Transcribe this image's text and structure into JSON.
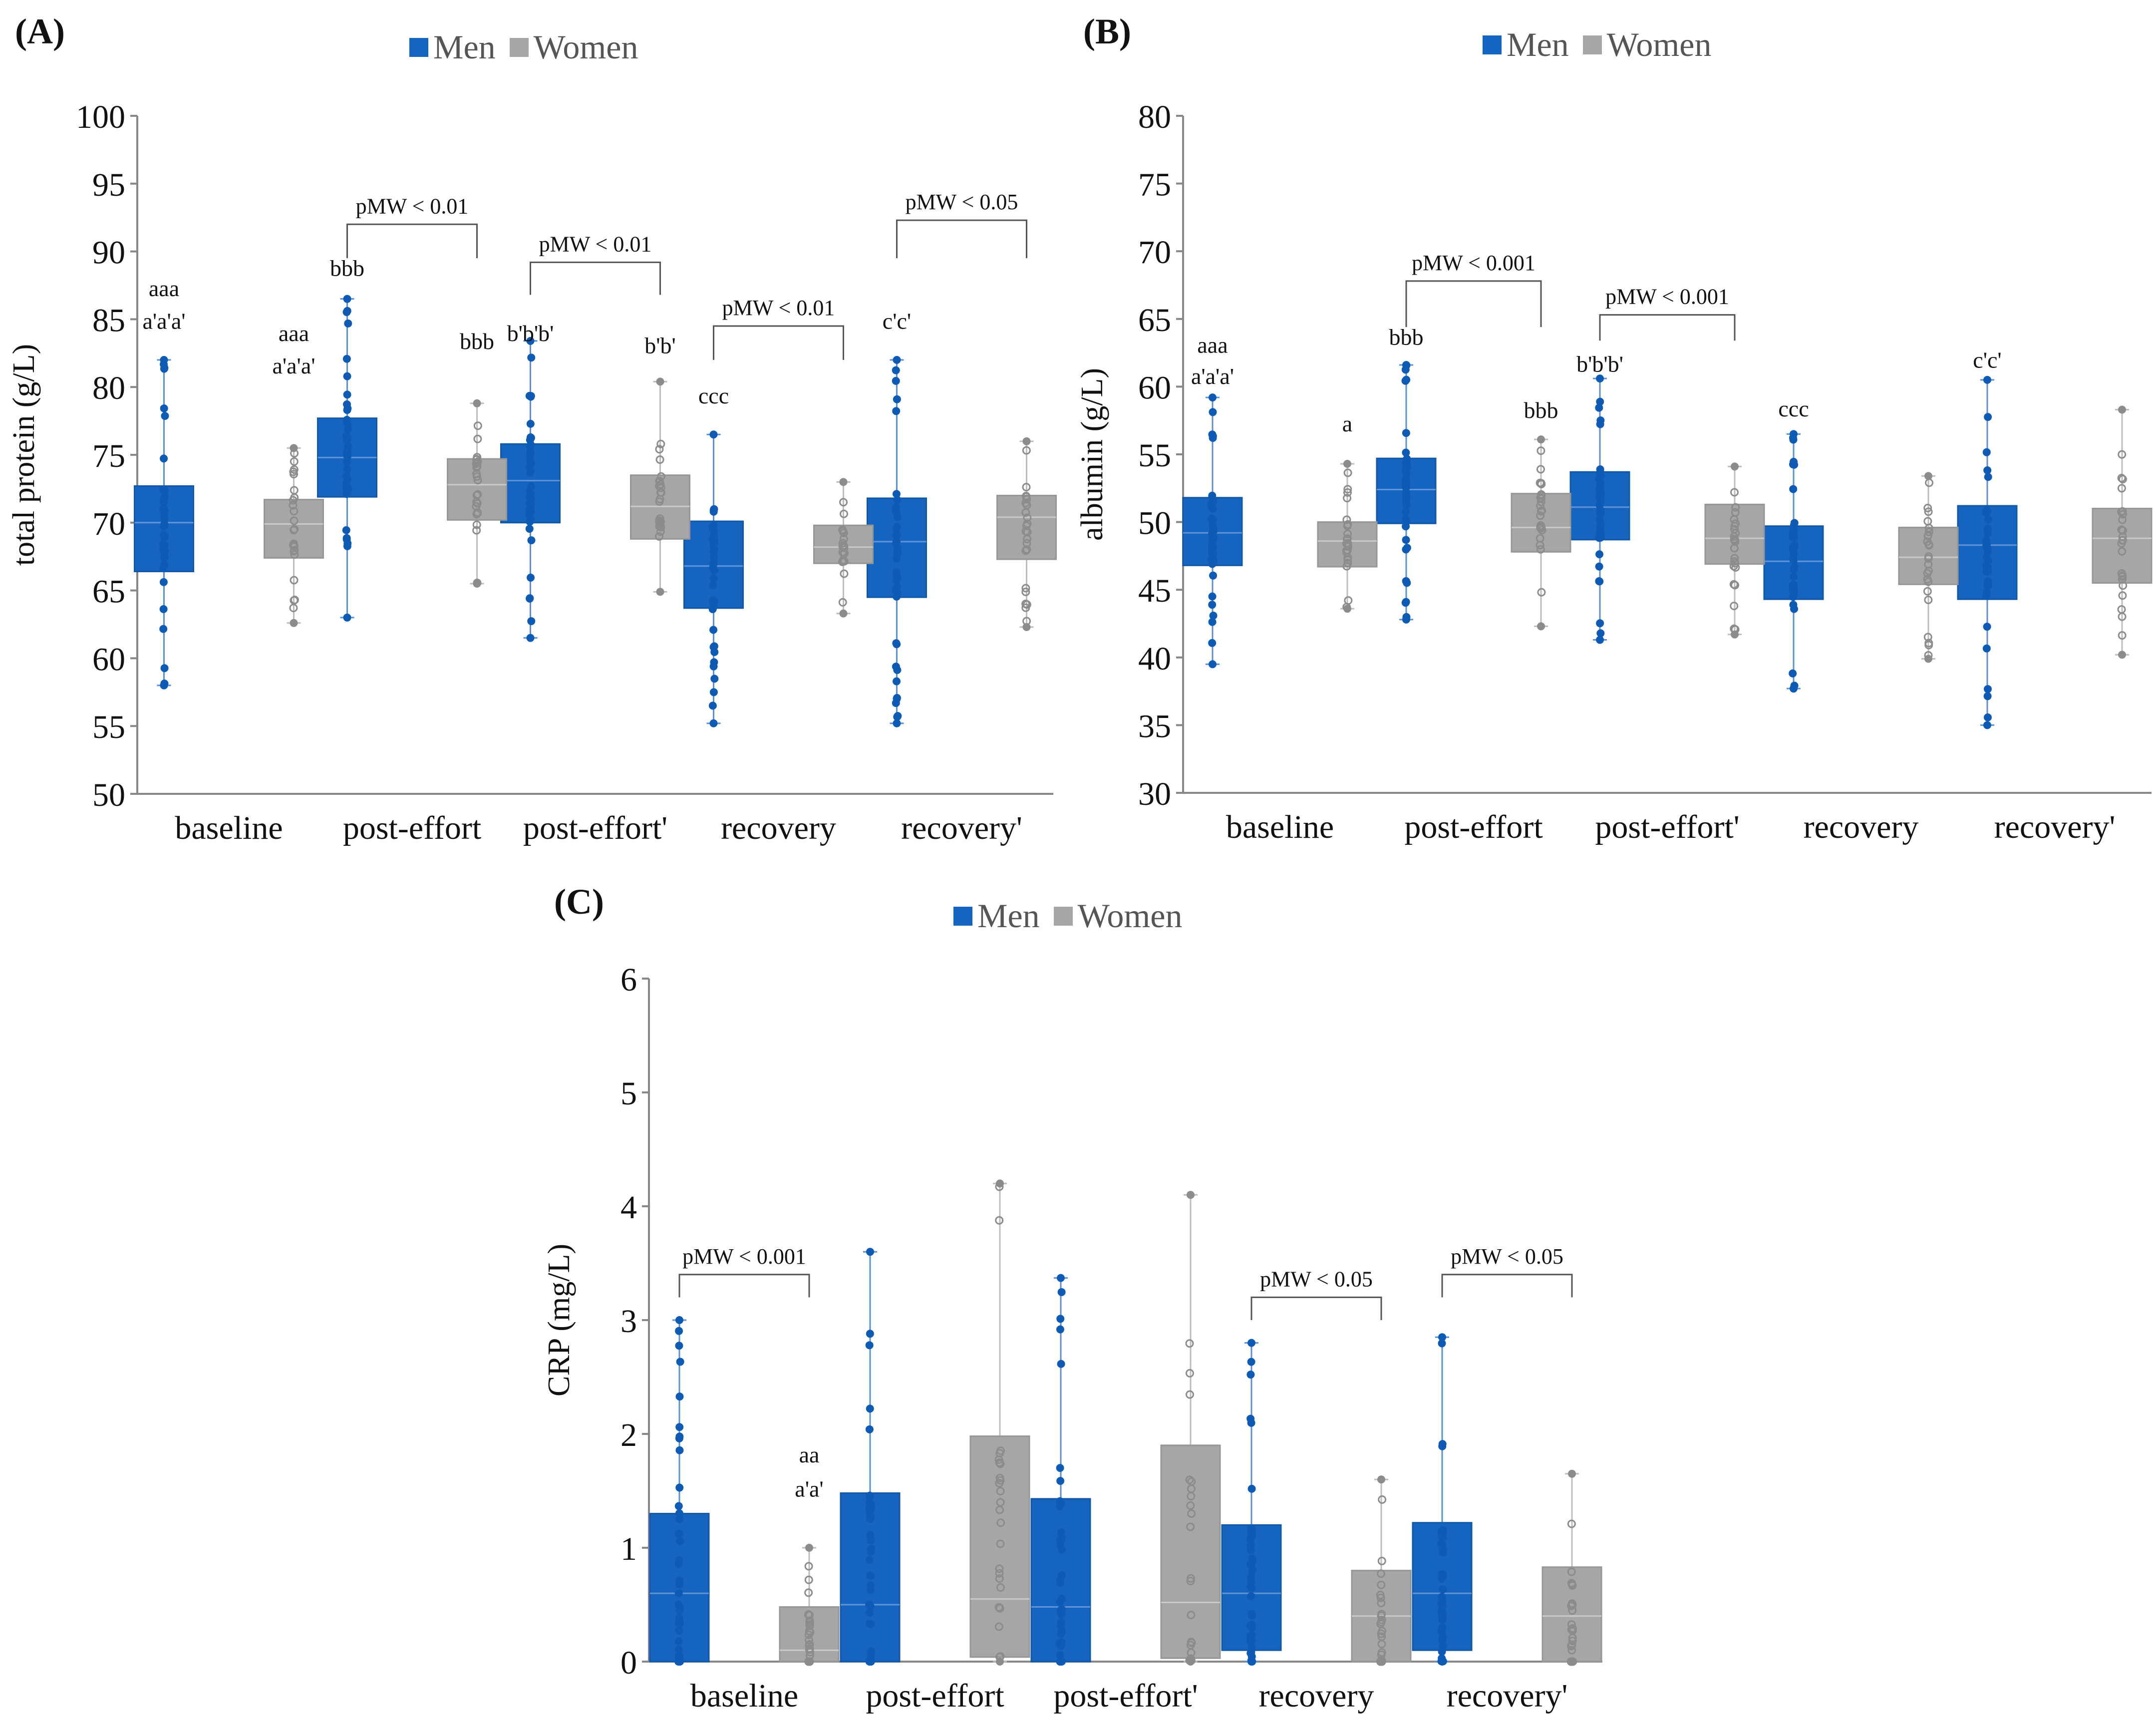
{
  "colors": {
    "men": "#1565C0",
    "women": "#A6A6A6",
    "axis": "#888888",
    "text": "#111111"
  },
  "chart_data": [
    {
      "panel": "(A)",
      "type": "box",
      "legend": [
        "Men",
        "Women"
      ],
      "ylabel": "total protein (g/L)",
      "ylim": [
        50,
        100
      ],
      "yticks": [
        50,
        55,
        60,
        65,
        70,
        75,
        80,
        85,
        90,
        95,
        100
      ],
      "categories": [
        "baseline",
        "post-effort",
        "post-effort'",
        "recovery",
        "recovery'"
      ],
      "series": [
        {
          "name": "Men",
          "boxes": [
            {
              "min": 58,
              "q1": 66.4,
              "median": 70,
              "q3": 72.7,
              "max": 82
            },
            {
              "min": 63,
              "q1": 71.9,
              "median": 74.8,
              "q3": 77.7,
              "max": 86.5
            },
            {
              "min": 61.5,
              "q1": 70,
              "median": 73.1,
              "q3": 75.8,
              "max": 83.4
            },
            {
              "min": 55.2,
              "q1": 63.7,
              "median": 66.8,
              "q3": 70.1,
              "max": 76.5
            },
            {
              "min": 55.2,
              "q1": 64.5,
              "median": 68.6,
              "q3": 71.8,
              "max": 82
            }
          ]
        },
        {
          "name": "Women",
          "boxes": [
            {
              "min": 62.6,
              "q1": 67.4,
              "median": 69.9,
              "q3": 71.7,
              "max": 75.5
            },
            {
              "min": 65.5,
              "q1": 70.2,
              "median": 72.8,
              "q3": 74.7,
              "max": 78.8
            },
            {
              "min": 64.9,
              "q1": 68.8,
              "median": 71.2,
              "q3": 73.5,
              "max": 80.4
            },
            {
              "min": 63.3,
              "q1": 67,
              "median": 68.2,
              "q3": 69.8,
              "max": 73
            },
            {
              "min": 62.3,
              "q1": 67.3,
              "median": 70.4,
              "q3": 72,
              "max": 76
            }
          ]
        }
      ],
      "annotations": [
        {
          "text": "aaa",
          "cat": 0,
          "side": "men",
          "y": 86.7
        },
        {
          "text": "a'a'a'",
          "cat": 0,
          "side": "men",
          "y": 84.3
        },
        {
          "text": "aaa",
          "cat": 0,
          "side": "women",
          "y": 83.4
        },
        {
          "text": "a'a'a'",
          "cat": 0,
          "side": "women",
          "y": 81
        },
        {
          "text": "bbb",
          "cat": 1,
          "side": "men",
          "y": 88.2
        },
        {
          "text": "bbb",
          "cat": 1,
          "side": "women",
          "y": 82.8
        },
        {
          "text": "b'b'b'",
          "cat": 2,
          "side": "men",
          "y": 83.4
        },
        {
          "text": "b'b'",
          "cat": 2,
          "side": "women",
          "y": 82.5
        },
        {
          "text": "ccc",
          "cat": 3,
          "side": "men",
          "y": 78.8
        },
        {
          "text": "c'c'",
          "cat": 4,
          "side": "men",
          "y": 84.3
        }
      ],
      "brackets": [
        {
          "cat": 1,
          "text": "pMW < 0.01",
          "y": 92,
          "drop": 89.5
        },
        {
          "cat": 2,
          "text": "pMW < 0.01",
          "y": 89.2,
          "drop": 86.8
        },
        {
          "cat": 3,
          "text": "pMW < 0.01",
          "y": 84.5,
          "drop": 82
        },
        {
          "cat": 4,
          "text": "pMW < 0.05",
          "y": 92.3,
          "drop": 89.5
        }
      ]
    },
    {
      "panel": "(B)",
      "type": "box",
      "legend": [
        "Men",
        "Women"
      ],
      "ylabel": "albumin (g/L)",
      "ylim": [
        30,
        80
      ],
      "yticks": [
        30,
        35,
        40,
        45,
        50,
        55,
        60,
        65,
        70,
        75,
        80
      ],
      "categories": [
        "baseline",
        "post-effort",
        "post-effort'",
        "recovery",
        "recovery'"
      ],
      "series": [
        {
          "name": "Men",
          "boxes": [
            {
              "min": 39.5,
              "q1": 46.8,
              "median": 49.2,
              "q3": 51.8,
              "max": 59.2
            },
            {
              "min": 42.8,
              "q1": 49.9,
              "median": 52.4,
              "q3": 54.7,
              "max": 61.6
            },
            {
              "min": 41.3,
              "q1": 48.7,
              "median": 51.1,
              "q3": 53.7,
              "max": 60.6
            },
            {
              "min": 37.7,
              "q1": 44.3,
              "median": 47.1,
              "q3": 49.7,
              "max": 56.5
            },
            {
              "min": 35,
              "q1": 44.3,
              "median": 48.3,
              "q3": 51.2,
              "max": 60.5
            }
          ]
        },
        {
          "name": "Women",
          "boxes": [
            {
              "min": 43.6,
              "q1": 46.7,
              "median": 48.6,
              "q3": 50,
              "max": 54.3
            },
            {
              "min": 42.3,
              "q1": 47.8,
              "median": 49.6,
              "q3": 52.1,
              "max": 56.1
            },
            {
              "min": 41.7,
              "q1": 46.9,
              "median": 48.8,
              "q3": 51.3,
              "max": 54.1
            },
            {
              "min": 39.9,
              "q1": 45.4,
              "median": 47.4,
              "q3": 49.6,
              "max": 53.4
            },
            {
              "min": 40.2,
              "q1": 45.5,
              "median": 48.8,
              "q3": 51,
              "max": 58.3
            }
          ]
        }
      ],
      "annotations": [
        {
          "text": "aaa",
          "cat": 0,
          "side": "men",
          "y": 62.5
        },
        {
          "text": "a'a'a'",
          "cat": 0,
          "side": "men",
          "y": 60.2
        },
        {
          "text": "a",
          "cat": 0,
          "side": "women",
          "y": 56.7
        },
        {
          "text": "bbb",
          "cat": 1,
          "side": "men",
          "y": 63.1
        },
        {
          "text": "bbb",
          "cat": 1,
          "side": "women",
          "y": 57.7
        },
        {
          "text": "b'b'b'",
          "cat": 2,
          "side": "men",
          "y": 61.1
        },
        {
          "text": "ccc",
          "cat": 3,
          "side": "men",
          "y": 57.8
        },
        {
          "text": "c'c'",
          "cat": 4,
          "side": "men",
          "y": 61.4
        }
      ],
      "brackets": [
        {
          "cat": 1,
          "text": "pMW < 0.001",
          "y": 67.8,
          "drop": 64.4
        },
        {
          "cat": 2,
          "text": "pMW < 0.001",
          "y": 65.3,
          "drop": 63.4
        }
      ]
    },
    {
      "panel": "(C)",
      "type": "box",
      "legend": [
        "Men",
        "Women"
      ],
      "ylabel": "CRP (mg/L)",
      "ylim": [
        0,
        6
      ],
      "yticks": [
        0,
        1,
        2,
        3,
        4,
        5,
        6
      ],
      "categories": [
        "baseline",
        "post-effort",
        "post-effort'",
        "recovery",
        "recovery'"
      ],
      "series": [
        {
          "name": "Men",
          "boxes": [
            {
              "min": 0,
              "q1": 0,
              "median": 0.6,
              "q3": 1.3,
              "max": 3
            },
            {
              "min": 0,
              "q1": 0,
              "median": 0.5,
              "q3": 1.48,
              "max": 3.6
            },
            {
              "min": 0,
              "q1": 0,
              "median": 0.48,
              "q3": 1.43,
              "max": 3.37
            },
            {
              "min": 0,
              "q1": 0.1,
              "median": 0.6,
              "q3": 1.2,
              "max": 2.8
            },
            {
              "min": 0,
              "q1": 0.1,
              "median": 0.6,
              "q3": 1.22,
              "max": 2.85
            }
          ]
        },
        {
          "name": "Women",
          "boxes": [
            {
              "min": 0,
              "q1": 0,
              "median": 0.1,
              "q3": 0.48,
              "max": 1
            },
            {
              "min": 0,
              "q1": 0.04,
              "median": 0.55,
              "q3": 1.98,
              "max": 4.2
            },
            {
              "min": 0,
              "q1": 0.03,
              "median": 0.52,
              "q3": 1.9,
              "max": 4.1
            },
            {
              "min": 0,
              "q1": 0,
              "median": 0.4,
              "q3": 0.8,
              "max": 1.6
            },
            {
              "min": 0,
              "q1": 0,
              "median": 0.4,
              "q3": 0.83,
              "max": 1.65
            }
          ]
        }
      ],
      "annotations": [
        {
          "text": "aa",
          "cat": 0,
          "side": "women",
          "y": 1.75
        },
        {
          "text": "a'a'",
          "cat": 0,
          "side": "women",
          "y": 1.45
        }
      ],
      "brackets": [
        {
          "cat": 0,
          "text": "pMW < 0.001",
          "y": 3.4,
          "drop": 3.2
        },
        {
          "cat": 3,
          "text": "pMW < 0.05",
          "y": 3.2,
          "drop": 3.0
        },
        {
          "cat": 4,
          "text": "pMW < 0.05",
          "y": 3.4,
          "drop": 3.2
        }
      ]
    }
  ]
}
